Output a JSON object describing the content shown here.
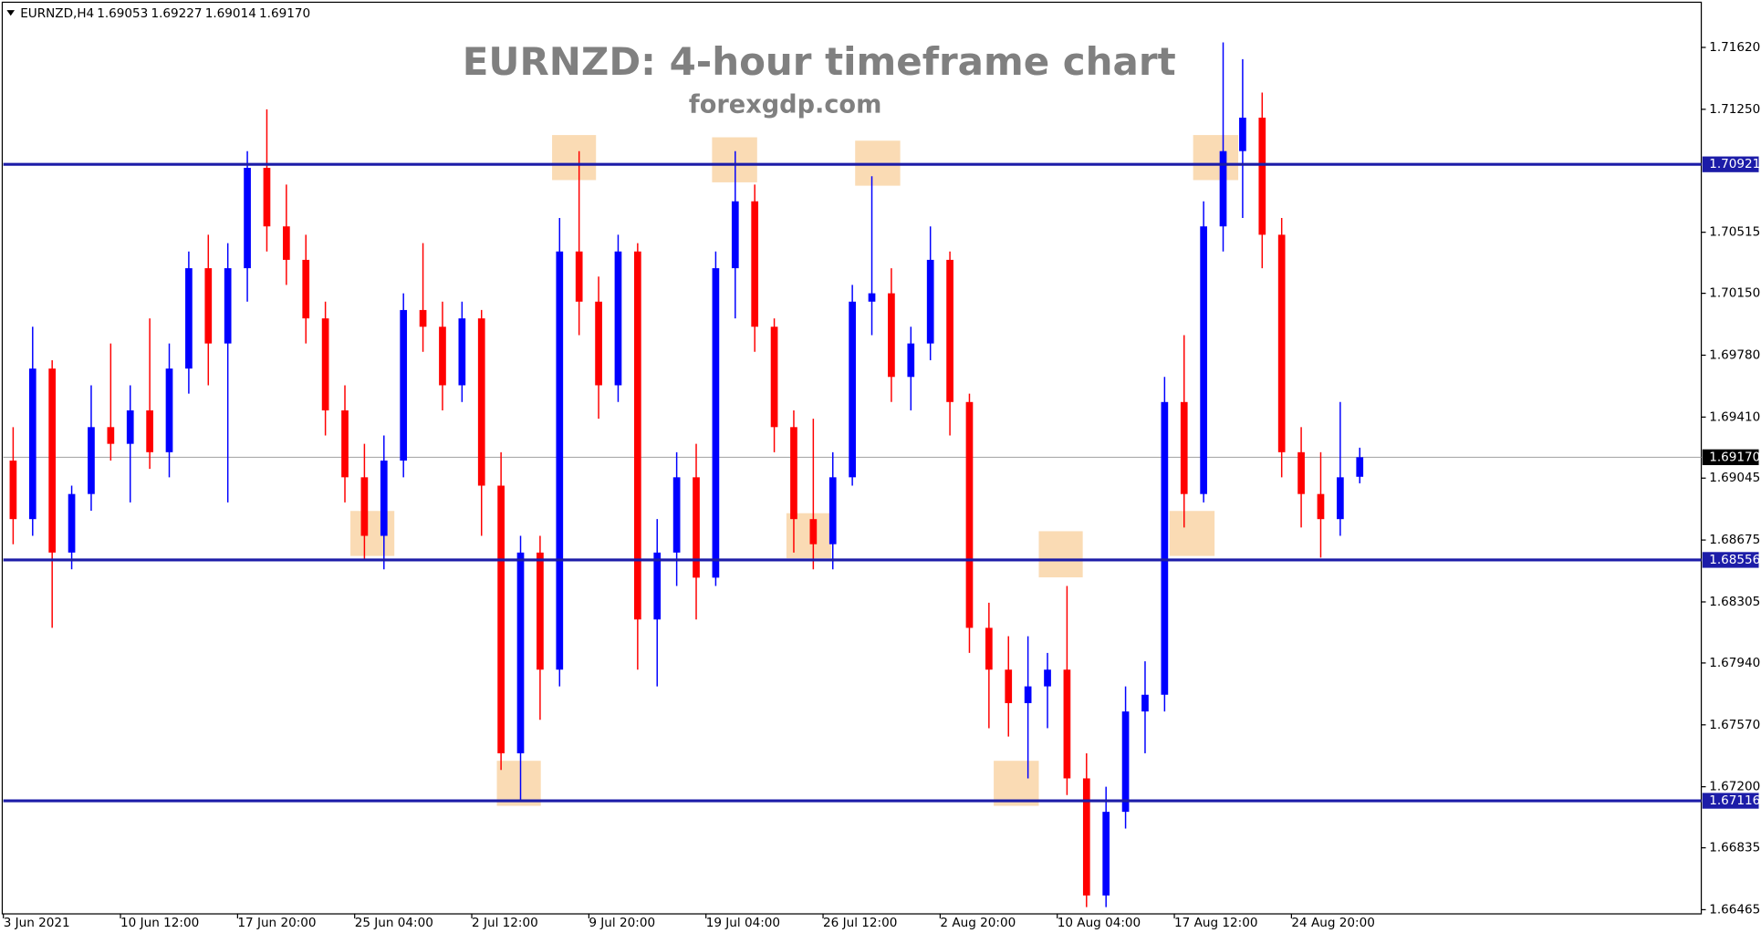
{
  "chart_data": {
    "type": "candlestick",
    "symbol": "EURNZD,H4",
    "header_values": [
      1.69053,
      1.69227,
      1.69014,
      {
        "value": 1.6917,
        "label": "1.69170"
      }
    ],
    "title": "EURNZD: 4-hour timeframe chart",
    "subtitle": "forexgdp.com",
    "up_color": "#0000ff",
    "down_color": "#ff0000",
    "level_color": "#1c1ca8",
    "levels": [
      1.70921,
      1.68556,
      1.67116
    ],
    "last_price": {
      "value": 1.6917,
      "label": "1.69170"
    },
    "ylim": [
      1.6644,
      1.7189
    ],
    "yticks": [
      {
        "value": 1.7162,
        "label": "1.71620"
      },
      {
        "value": 1.7125,
        "label": "1.71250"
      },
      1.70515,
      {
        "value": 1.7015,
        "label": "1.70150"
      },
      {
        "value": 1.6978,
        "label": "1.69780"
      },
      {
        "value": 1.6941,
        "label": "1.69410"
      },
      1.69045,
      1.68675,
      1.68305,
      {
        "value": 1.6794,
        "label": "1.67940"
      },
      {
        "value": 1.6757,
        "label": "1.67570"
      },
      {
        "value": 1.672,
        "label": "1.67200"
      },
      1.66835,
      1.66465
    ],
    "xlim": [
      0,
      87
    ],
    "xticks": [
      {
        "value": 0,
        "label": "3 Jun 2021"
      },
      {
        "value": 6,
        "label": "10 Jun 12:00"
      },
      {
        "value": 12,
        "label": "17 Jun 20:00"
      },
      {
        "value": 18,
        "label": "25 Jun 04:00"
      },
      {
        "value": 24,
        "label": "2 Jul 12:00"
      },
      {
        "value": 30,
        "label": "9 Jul 20:00"
      },
      {
        "value": 36,
        "label": "19 Jul 04:00"
      },
      {
        "value": 42,
        "label": "26 Jul 12:00"
      },
      {
        "value": 48,
        "label": "2 Aug 20:00"
      },
      {
        "value": 54,
        "label": "10 Aug 04:00"
      },
      {
        "value": 60,
        "label": "17 Aug 12:00"
      },
      {
        "value": 66,
        "label": "24 Aug 20:00"
      }
    ],
    "open": [
      1.6915,
      1.688,
      1.697,
      1.686,
      1.6895,
      1.6935,
      1.6925,
      1.6945,
      1.692,
      1.697,
      1.703,
      1.6985,
      1.703,
      1.709,
      1.7055,
      1.7035,
      1.7,
      1.6945,
      1.6905,
      1.687,
      1.6915,
      1.7005,
      1.6995,
      1.696,
      1.7,
      1.69,
      1.674,
      1.686,
      1.679,
      1.704,
      1.701,
      1.696,
      1.704,
      1.682,
      1.686,
      1.6905,
      1.6845,
      1.703,
      1.707,
      1.6995,
      1.6935,
      1.688,
      1.6865,
      1.6905,
      1.701,
      1.7015,
      1.6965,
      1.6985,
      1.7035,
      1.695,
      1.6815,
      1.679,
      1.677,
      1.678,
      1.679,
      1.6725,
      1.6655,
      1.6705,
      1.6765,
      1.6775,
      1.695,
      1.6895,
      1.7055,
      1.71,
      1.712,
      1.705,
      1.692,
      1.6895,
      1.688,
      1.69053
    ],
    "high": [
      1.6935,
      1.6995,
      1.6975,
      1.69,
      1.696,
      1.6985,
      1.696,
      1.7,
      1.6985,
      1.704,
      1.705,
      1.7045,
      1.71,
      1.7125,
      1.708,
      1.705,
      1.701,
      1.696,
      1.6925,
      1.693,
      1.7015,
      1.7045,
      1.701,
      1.701,
      1.7005,
      1.692,
      1.687,
      1.687,
      1.706,
      1.71,
      1.7025,
      1.705,
      1.7045,
      1.688,
      1.692,
      1.6925,
      1.704,
      1.71,
      1.708,
      1.7,
      1.6945,
      1.694,
      1.692,
      1.702,
      1.7085,
      1.703,
      1.6995,
      1.7055,
      1.704,
      1.6955,
      1.683,
      1.681,
      1.681,
      1.68,
      1.684,
      1.674,
      1.672,
      1.678,
      1.6795,
      1.6965,
      1.699,
      1.707,
      1.7165,
      1.7155,
      1.7135,
      1.706,
      1.6935,
      1.692,
      1.695,
      1.69227
    ],
    "low": [
      1.6865,
      1.687,
      1.6815,
      1.685,
      1.6885,
      1.6915,
      1.689,
      1.691,
      1.6905,
      1.6955,
      1.696,
      1.689,
      1.701,
      1.704,
      1.702,
      1.6985,
      1.693,
      1.689,
      1.6855,
      1.685,
      1.6905,
      1.698,
      1.6945,
      1.695,
      1.687,
      1.673,
      1.6712,
      1.676,
      1.678,
      1.699,
      1.694,
      1.695,
      1.679,
      1.678,
      1.684,
      1.682,
      1.684,
      1.7,
      1.698,
      1.692,
      1.686,
      1.685,
      1.685,
      1.69,
      1.699,
      1.695,
      1.6945,
      1.6975,
      1.693,
      1.68,
      1.6755,
      1.675,
      1.6725,
      1.6755,
      1.6715,
      1.6648,
      1.6648,
      1.6695,
      1.674,
      1.6765,
      1.6875,
      1.689,
      1.704,
      1.706,
      1.703,
      1.6905,
      1.6875,
      1.6857,
      1.687,
      1.69014
    ],
    "close": [
      1.688,
      1.697,
      1.686,
      1.6895,
      1.6935,
      1.6925,
      1.6945,
      1.692,
      1.697,
      1.703,
      1.6985,
      1.703,
      1.709,
      1.7055,
      1.7035,
      1.7,
      1.6945,
      1.6905,
      1.687,
      1.6915,
      1.7005,
      1.6995,
      1.696,
      1.7,
      1.69,
      1.674,
      1.686,
      1.679,
      1.704,
      1.701,
      1.696,
      1.704,
      1.682,
      1.686,
      1.6905,
      1.6845,
      1.703,
      1.707,
      1.6995,
      1.6935,
      1.688,
      1.6865,
      1.6905,
      1.701,
      1.7015,
      1.6965,
      1.6985,
      1.7035,
      1.695,
      1.6815,
      1.679,
      1.677,
      1.678,
      1.679,
      1.6725,
      1.6655,
      1.6705,
      1.6765,
      1.6775,
      1.695,
      1.6895,
      1.7055,
      1.71,
      1.712,
      1.705,
      1.692,
      1.6895,
      1.688,
      1.6905,
      1.6917
    ]
  }
}
